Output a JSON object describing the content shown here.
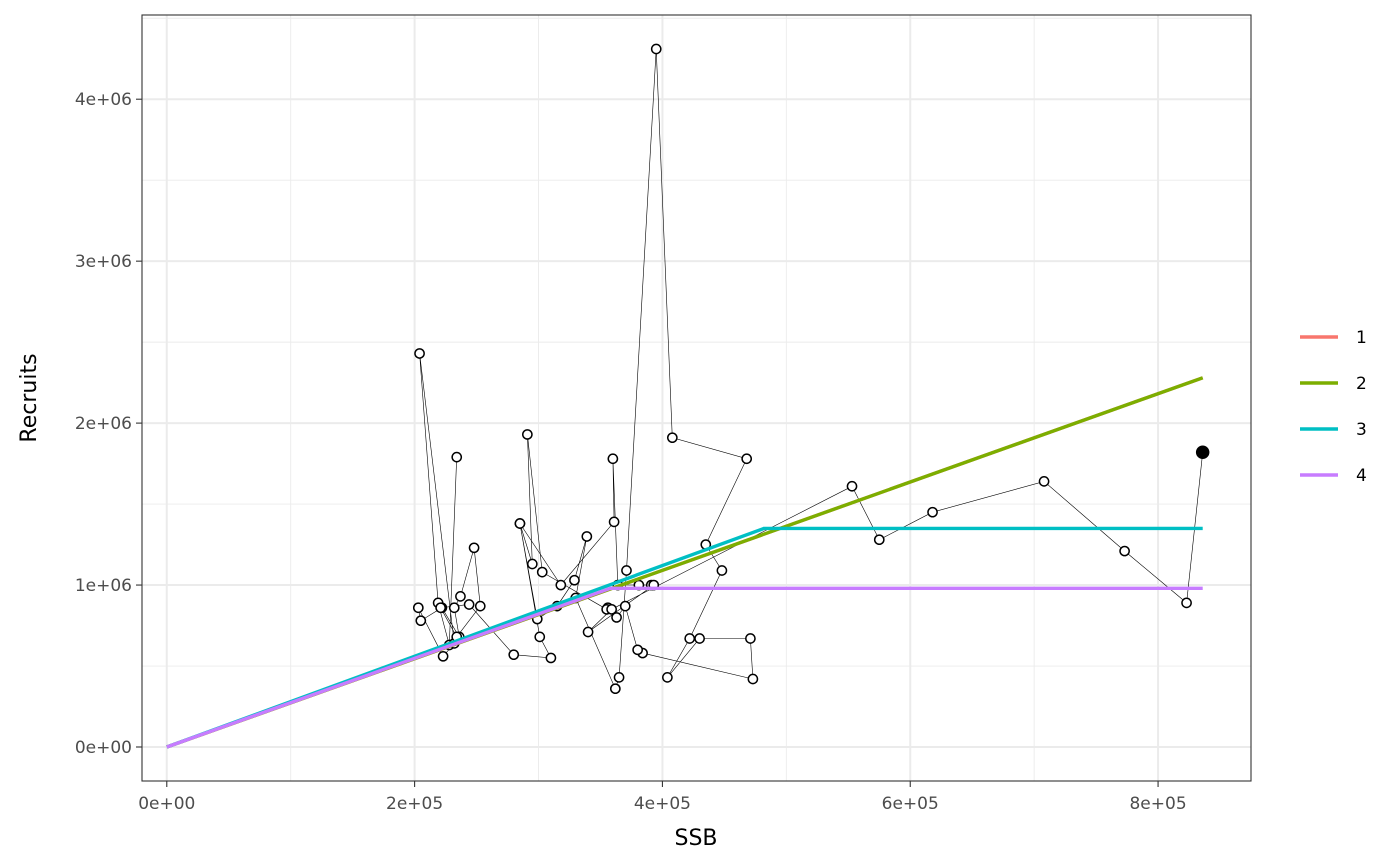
{
  "chart_data": {
    "type": "line",
    "xlabel": "SSB",
    "ylabel": "Recruits",
    "xlim": [
      -20000,
      875000
    ],
    "ylim": [
      -210000,
      4520000
    ],
    "x_ticks": [
      0,
      200000,
      400000,
      600000,
      800000
    ],
    "x_tick_labels": [
      "0e+00",
      "2e+05",
      "4e+05",
      "6e+05",
      "8e+05"
    ],
    "y_ticks": [
      0,
      1000000,
      2000000,
      3000000,
      4000000
    ],
    "y_tick_labels": [
      "0e+00",
      "1e+06",
      "2e+06",
      "3e+06",
      "4e+06"
    ],
    "grid": true,
    "legend_position": "right",
    "legend_title": "",
    "colors": {
      "series1": "#F8766D",
      "series2": "#7CAE00",
      "series3": "#00BFC4",
      "series4": "#C77CFF",
      "observed": "#000000"
    },
    "series": [
      {
        "name": "1",
        "x": [
          0,
          836000
        ],
        "y": [
          0,
          2280000
        ]
      },
      {
        "name": "2",
        "x": [
          0,
          836000
        ],
        "y": [
          0,
          2280000
        ]
      },
      {
        "name": "3",
        "x": [
          0,
          482000,
          836000
        ],
        "y": [
          0,
          1350000,
          1350000
        ]
      },
      {
        "name": "4",
        "x": [
          0,
          358000,
          836000
        ],
        "y": [
          0,
          980000,
          980000
        ]
      }
    ],
    "observed": {
      "x": [
        234000,
        228000,
        219000,
        204000,
        232000,
        223000,
        203000,
        205000,
        222000,
        236000,
        232000,
        237000,
        248000,
        253000,
        234000,
        221000,
        244000,
        280000,
        310000,
        301000,
        285000,
        299000,
        315000,
        329000,
        339000,
        330000,
        362000,
        365000,
        371000,
        395000,
        408000,
        468000,
        435000,
        448000,
        422000,
        404000,
        430000,
        471000,
        473000,
        384000,
        380000,
        370000,
        363000,
        356000,
        355000,
        303000,
        291000,
        295000,
        285000,
        318000,
        361000,
        360000,
        364000,
        381000,
        391000,
        393000,
        340000,
        359000,
        553000,
        575000,
        618000,
        708000,
        773000,
        823000,
        836000
      ],
      "y": [
        1790000,
        630000,
        890000,
        2430000,
        640000,
        560000,
        860000,
        780000,
        860000,
        680000,
        860000,
        930000,
        1230000,
        870000,
        680000,
        860000,
        880000,
        570000,
        550000,
        680000,
        1380000,
        790000,
        870000,
        1030000,
        1300000,
        920000,
        360000,
        430000,
        1090000,
        4310000,
        1910000,
        1780000,
        1250000,
        1090000,
        670000,
        430000,
        670000,
        670000,
        420000,
        580000,
        600000,
        870000,
        800000,
        860000,
        850000,
        1080000,
        1930000,
        1130000,
        1380000,
        1000000,
        1390000,
        1780000,
        1000000,
        1000000,
        1000000,
        1000000,
        710000,
        850000,
        1610000,
        1280000,
        1450000,
        1640000,
        1210000,
        890000,
        1820000
      ]
    }
  }
}
